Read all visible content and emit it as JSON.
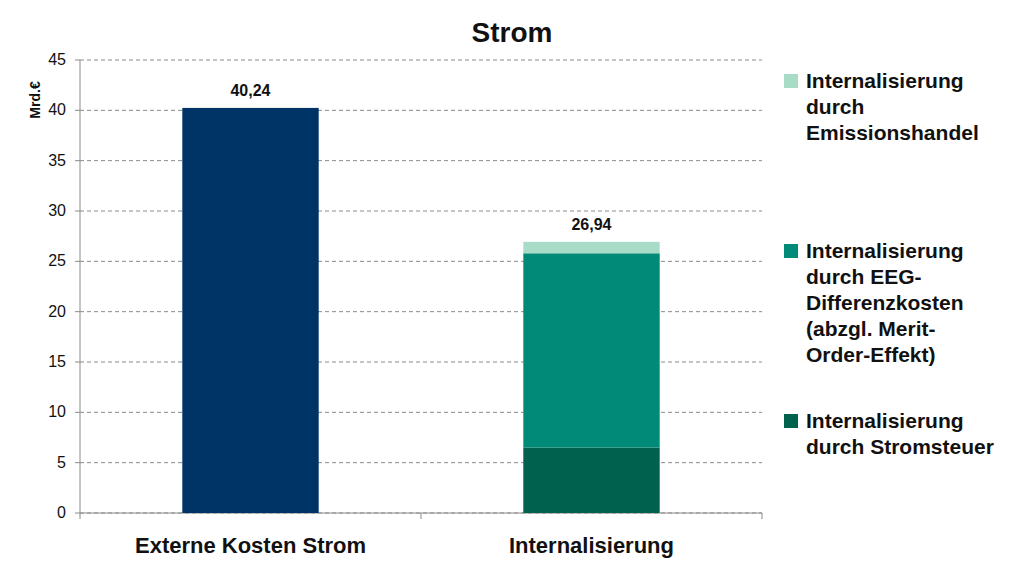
{
  "chart_data": {
    "type": "bar",
    "title": "Strom",
    "y_label": "Mrd.€",
    "categories": [
      "Externe Kosten Strom",
      "Internalisierung"
    ],
    "stacked": true,
    "series": [
      {
        "color": "#003366",
        "values": [
          40.24,
          null
        ]
      },
      {
        "name": "Internalisierung durch Stromsteuer",
        "color": "#00614f",
        "values": [
          null,
          6.5
        ]
      },
      {
        "name": "Internalisierung durch EEG-Differenzkosten (abzgl. Merit-Order-Effekt)",
        "color": "#008b78",
        "values": [
          null,
          19.3
        ]
      },
      {
        "name": "Internalisierung durch Emissionshandel",
        "color": "#a8dcc6",
        "values": [
          null,
          1.14
        ]
      }
    ],
    "totals": [
      40.24,
      26.94
    ],
    "total_labels": [
      "40,24",
      "26,94"
    ],
    "data_labels": true,
    "ylim": [
      0,
      45
    ],
    "yticks": [
      0,
      5,
      10,
      15,
      20,
      25,
      30,
      35,
      40,
      45
    ],
    "grid": true,
    "legend": "right"
  }
}
